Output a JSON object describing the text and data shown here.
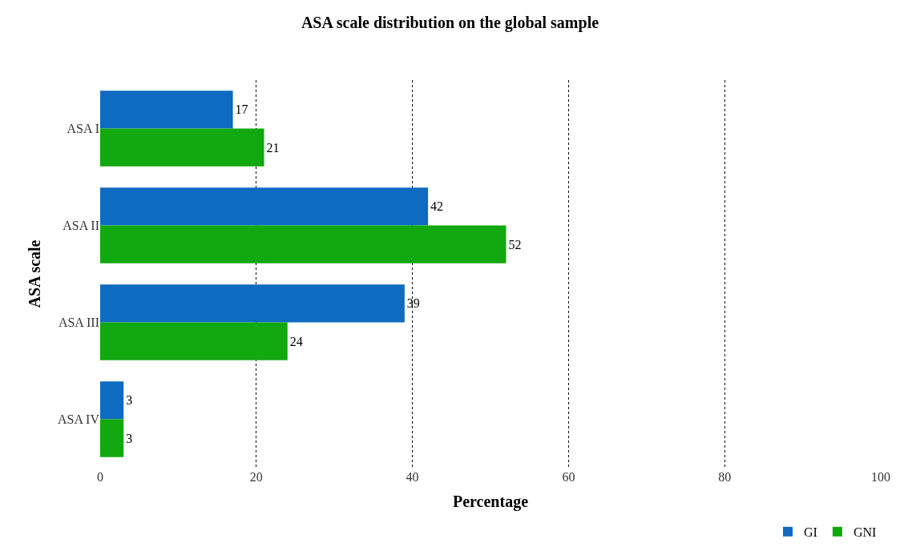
{
  "chart_data": {
    "type": "bar",
    "orientation": "horizontal",
    "title": "ASA scale distribution on the global sample",
    "xlabel": "Percentage",
    "ylabel": "ASA scale",
    "categories": [
      "ASA I",
      "ASA II",
      "ASA III",
      "ASA IV"
    ],
    "series": [
      {
        "name": "GI",
        "color": "#0f6bc1",
        "values": [
          17,
          42,
          39,
          3
        ]
      },
      {
        "name": "GNI",
        "color": "#12a80f",
        "values": [
          21,
          52,
          24,
          3
        ]
      }
    ],
    "xlim": [
      0,
      100
    ],
    "xticks": [
      0,
      20,
      40,
      60,
      80,
      100
    ],
    "grid": "x",
    "legend": "bottom right",
    "data_labels": true
  }
}
